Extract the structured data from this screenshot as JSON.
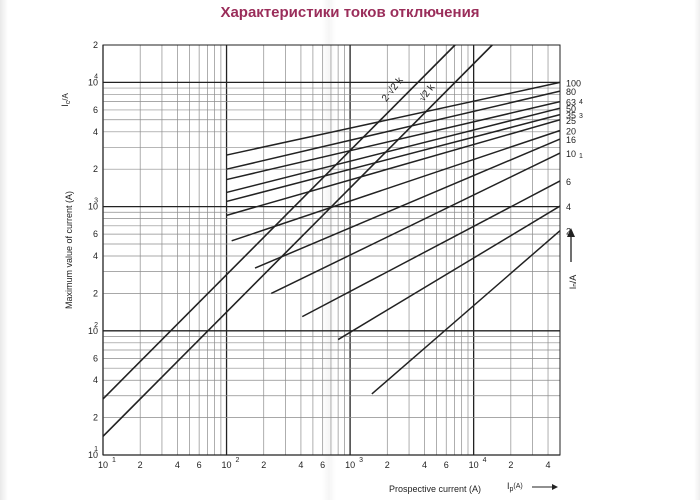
{
  "page": {
    "title": "Характеристики токов отключения",
    "title_color": "#9a2d5a",
    "line_color": "#222222",
    "grid_color": "#8c8c8c"
  },
  "chart_data": {
    "type": "line",
    "title": "",
    "xlabel": "Prospective current (A)",
    "x_symbol": "I",
    "x_symbol_sub": "p",
    "x_symbol_unit": "(A)",
    "ylabel": "Maximum value of current (A)",
    "y_symbol": "I",
    "y_symbol_sub": "c",
    "y_symbol_unit": "/A",
    "x_scale": "log",
    "y_scale": "log",
    "xlim": [
      10,
      50000
    ],
    "ylim": [
      10,
      20000
    ],
    "grid": true,
    "x_ticks": [
      {
        "value": 10,
        "mantissa": "10",
        "exp": "1"
      },
      {
        "value": 20,
        "mantissa": "2"
      },
      {
        "value": 40,
        "mantissa": "4"
      },
      {
        "value": 60,
        "mantissa": "6"
      },
      {
        "value": 100,
        "mantissa": "10",
        "exp": "2"
      },
      {
        "value": 200,
        "mantissa": "2"
      },
      {
        "value": 400,
        "mantissa": "4"
      },
      {
        "value": 600,
        "mantissa": "6"
      },
      {
        "value": 1000,
        "mantissa": "10",
        "exp": "3"
      },
      {
        "value": 2000,
        "mantissa": "2"
      },
      {
        "value": 4000,
        "mantissa": "4"
      },
      {
        "value": 6000,
        "mantissa": "6"
      },
      {
        "value": 10000,
        "mantissa": "10",
        "exp": "4"
      },
      {
        "value": 20000,
        "mantissa": "2"
      },
      {
        "value": 40000,
        "mantissa": "4"
      }
    ],
    "y_ticks": [
      {
        "value": 10,
        "mantissa": "10",
        "exp": "1"
      },
      {
        "value": 20,
        "mantissa": "2"
      },
      {
        "value": 40,
        "mantissa": "4"
      },
      {
        "value": 60,
        "mantissa": "6"
      },
      {
        "value": 100,
        "mantissa": "10",
        "exp": "2"
      },
      {
        "value": 200,
        "mantissa": "2"
      },
      {
        "value": 400,
        "mantissa": "4"
      },
      {
        "value": 600,
        "mantissa": "6"
      },
      {
        "value": 1000,
        "mantissa": "10",
        "exp": "3"
      },
      {
        "value": 2000,
        "mantissa": "2"
      },
      {
        "value": 4000,
        "mantissa": "4"
      },
      {
        "value": 6000,
        "mantissa": "6"
      },
      {
        "value": 10000,
        "mantissa": "10",
        "exp": "4"
      },
      {
        "value": 20000,
        "mantissa": "2"
      }
    ],
    "reference_lines": [
      {
        "name": "2·√2 k",
        "label_prefix": "2·",
        "label_root": "√2",
        "label_suffix": "k",
        "factor": 2.828
      },
      {
        "name": "√2 k",
        "label_prefix": "",
        "label_root": "√2",
        "label_suffix": "k",
        "factor": 1.414
      }
    ],
    "series": [
      {
        "name": "2",
        "start": [
          1500,
          31
        ],
        "end": [
          50000,
          640
        ]
      },
      {
        "name": "4",
        "start": [
          800,
          85
        ],
        "end": [
          50000,
          1010
        ]
      },
      {
        "name": "6",
        "start": [
          410,
          130
        ],
        "end": [
          50000,
          1610
        ]
      },
      {
        "name": "10",
        "start": [
          230,
          200
        ],
        "end": [
          50000,
          2700
        ]
      },
      {
        "name": "16",
        "start": [
          170,
          320
        ],
        "end": [
          50000,
          3500
        ]
      },
      {
        "name": "20",
        "start": [
          110,
          530
        ],
        "end": [
          50000,
          4100
        ]
      },
      {
        "name": "25",
        "start": [
          100,
          850
        ],
        "end": [
          50000,
          5000
        ]
      },
      {
        "name": "35",
        "start": [
          100,
          1100
        ],
        "end": [
          50000,
          5500
        ]
      },
      {
        "name": "50",
        "start": [
          100,
          1300
        ],
        "end": [
          50000,
          6200
        ]
      },
      {
        "name": "63",
        "start": [
          100,
          1650
        ],
        "end": [
          50000,
          7000
        ]
      },
      {
        "name": "80",
        "start": [
          100,
          2000
        ],
        "end": [
          50000,
          8500
        ]
      },
      {
        "name": "100",
        "start": [
          100,
          2600
        ],
        "end": [
          50000,
          10000
        ]
      }
    ],
    "legend_placement": "right",
    "right_side_labels": [
      "100",
      "80",
      "63",
      "50",
      "35",
      "25",
      "20",
      "16",
      "10",
      "6",
      "4",
      "2"
    ],
    "right_side_marks": [
      "4",
      "3",
      "1"
    ],
    "right_axis_label": "Iₙ/A"
  }
}
